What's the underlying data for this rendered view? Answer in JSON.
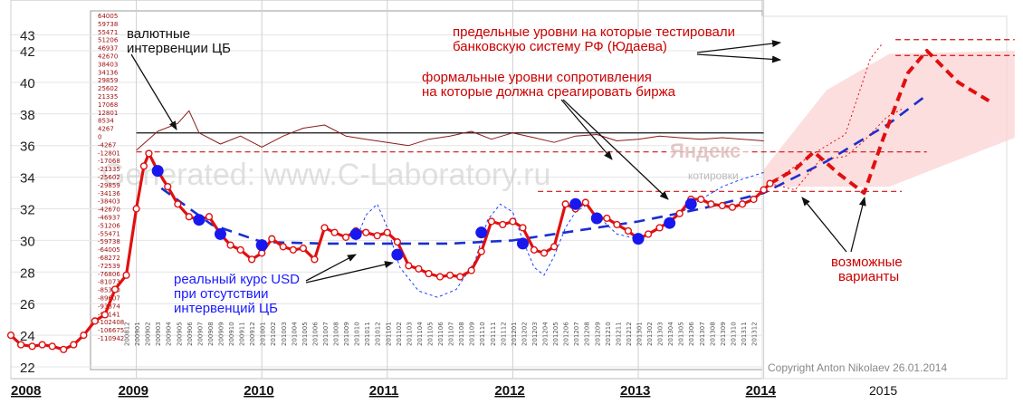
{
  "chart_data": {
    "type": "line",
    "y_ticks": [
      "22",
      "24",
      "26",
      "28",
      "30",
      "32",
      "34",
      "36",
      "38",
      "40",
      "42",
      "43"
    ],
    "x_year_labels": [
      "2008",
      "2009",
      "2010",
      "2011",
      "2012",
      "2013",
      "2014",
      "2015"
    ],
    "ylim": [
      22,
      43
    ],
    "grid": true,
    "series": [
      {
        "name": "",
        "style": "red-solid-with-markers",
        "points": [
          [
            2008.0,
            24.0
          ],
          [
            2008.08,
            23.4
          ],
          [
            2008.17,
            23.3
          ],
          [
            2008.25,
            23.4
          ],
          [
            2008.33,
            23.3
          ],
          [
            2008.42,
            23.1
          ],
          [
            2008.5,
            23.4
          ],
          [
            2008.58,
            24.0
          ],
          [
            2008.67,
            24.9
          ],
          [
            2008.75,
            25.3
          ],
          [
            2008.83,
            26.9
          ],
          [
            2008.92,
            27.8
          ],
          [
            2009.0,
            32.0
          ],
          [
            2009.06,
            34.7
          ],
          [
            2009.1,
            35.5
          ],
          [
            2009.17,
            34.4
          ],
          [
            2009.25,
            33.4
          ],
          [
            2009.33,
            32.3
          ],
          [
            2009.42,
            31.5
          ],
          [
            2009.5,
            31.3
          ],
          [
            2009.58,
            31.5
          ],
          [
            2009.67,
            30.4
          ],
          [
            2009.75,
            29.7
          ],
          [
            2009.83,
            29.4
          ],
          [
            2009.92,
            28.8
          ],
          [
            2010.0,
            29.2
          ],
          [
            2010.08,
            30.1
          ],
          [
            2010.17,
            29.6
          ],
          [
            2010.25,
            29.4
          ],
          [
            2010.33,
            29.5
          ],
          [
            2010.42,
            28.8
          ],
          [
            2010.5,
            30.8
          ],
          [
            2010.58,
            30.5
          ],
          [
            2010.67,
            30.2
          ],
          [
            2010.75,
            30.6
          ],
          [
            2010.83,
            30.5
          ],
          [
            2010.92,
            30.3
          ],
          [
            2011.0,
            30.5
          ],
          [
            2011.08,
            29.9
          ],
          [
            2011.17,
            28.4
          ],
          [
            2011.25,
            28.2
          ],
          [
            2011.33,
            27.9
          ],
          [
            2011.42,
            27.7
          ],
          [
            2011.5,
            27.8
          ],
          [
            2011.58,
            27.7
          ],
          [
            2011.67,
            28.1
          ],
          [
            2011.75,
            29.3
          ],
          [
            2011.83,
            31.2
          ],
          [
            2011.92,
            31.0
          ],
          [
            2012.0,
            31.2
          ],
          [
            2012.08,
            30.8
          ],
          [
            2012.17,
            29.4
          ],
          [
            2012.25,
            29.2
          ],
          [
            2012.33,
            29.6
          ],
          [
            2012.42,
            32.3
          ],
          [
            2012.5,
            32.0
          ],
          [
            2012.58,
            32.4
          ],
          [
            2012.67,
            31.4
          ],
          [
            2012.75,
            31.4
          ],
          [
            2012.83,
            31.0
          ],
          [
            2012.92,
            30.6
          ],
          [
            2013.0,
            30.1
          ],
          [
            2013.08,
            30.4
          ],
          [
            2013.17,
            30.8
          ],
          [
            2013.25,
            31.2
          ],
          [
            2013.33,
            31.7
          ],
          [
            2013.42,
            32.6
          ],
          [
            2013.5,
            32.6
          ],
          [
            2013.58,
            32.3
          ],
          [
            2013.67,
            32.2
          ],
          [
            2013.75,
            32.1
          ],
          [
            2013.83,
            32.3
          ],
          [
            2013.92,
            32.6
          ],
          [
            2014.0,
            33.2
          ],
          [
            2014.05,
            33.6
          ]
        ]
      },
      {
        "name": "",
        "style": "blue-dots",
        "points": [
          [
            2009.17,
            34.4
          ],
          [
            2009.5,
            31.3
          ],
          [
            2009.67,
            30.4
          ],
          [
            2010.0,
            29.7
          ],
          [
            2010.75,
            30.4
          ],
          [
            2011.08,
            29.1
          ],
          [
            2011.75,
            30.5
          ],
          [
            2012.08,
            29.8
          ],
          [
            2012.5,
            32.3
          ],
          [
            2012.67,
            31.4
          ],
          [
            2013.0,
            30.1
          ],
          [
            2013.25,
            31.1
          ],
          [
            2013.42,
            32.3
          ]
        ]
      },
      {
        "name": "",
        "style": "blue-dashed-trend",
        "points": [
          [
            2009.2,
            33.3
          ],
          [
            2009.6,
            31.0
          ],
          [
            2010.0,
            29.9
          ],
          [
            2010.5,
            29.8
          ],
          [
            2011.0,
            29.8
          ],
          [
            2011.5,
            29.8
          ],
          [
            2012.0,
            30.0
          ],
          [
            2012.5,
            30.6
          ],
          [
            2013.0,
            31.2
          ],
          [
            2013.5,
            32.0
          ],
          [
            2014.0,
            33.0
          ],
          [
            2014.5,
            35.0
          ],
          [
            2015.0,
            37.4
          ],
          [
            2015.3,
            39.2
          ]
        ]
      },
      {
        "name": "",
        "style": "blue-dotted-envelope",
        "points": [
          [
            2010.75,
            30.0
          ],
          [
            2010.83,
            31.6
          ],
          [
            2010.92,
            32.3
          ],
          [
            2011.0,
            30.8
          ],
          [
            2011.1,
            28.3
          ],
          [
            2011.25,
            26.8
          ],
          [
            2011.4,
            26.4
          ],
          [
            2011.55,
            26.9
          ],
          [
            2011.7,
            28.7
          ],
          [
            2011.8,
            31.3
          ],
          [
            2011.9,
            32.3
          ],
          [
            2012.0,
            31.8
          ],
          [
            2012.08,
            30.0
          ],
          [
            2012.17,
            28.3
          ],
          [
            2012.25,
            27.8
          ],
          [
            2012.33,
            29.0
          ],
          [
            2012.42,
            30.8
          ],
          [
            2012.5,
            31.8
          ],
          [
            2012.58,
            32.2
          ],
          [
            2012.67,
            31.6
          ],
          [
            2012.83,
            30.4
          ],
          [
            2013.0,
            30.1
          ],
          [
            2013.17,
            30.8
          ],
          [
            2013.33,
            31.7
          ],
          [
            2013.5,
            32.6
          ],
          [
            2013.67,
            33.4
          ],
          [
            2013.8,
            33.8
          ],
          [
            2014.0,
            34.3
          ]
        ]
      },
      {
        "name": "",
        "style": "red-dashed-scenario",
        "points": [
          [
            2014.05,
            33.6
          ],
          [
            2014.25,
            34.5
          ],
          [
            2014.4,
            35.6
          ],
          [
            2014.6,
            34.2
          ],
          [
            2014.8,
            33.0
          ],
          [
            2014.95,
            36.4
          ],
          [
            2015.15,
            40.6
          ],
          [
            2015.3,
            42.0
          ],
          [
            2015.55,
            40.0
          ],
          [
            2015.8,
            38.8
          ]
        ]
      },
      {
        "name": "",
        "style": "red-dotted-scenario-1",
        "points": [
          [
            2014.05,
            33.6
          ],
          [
            2014.4,
            35.5
          ],
          [
            2014.65,
            36.7
          ],
          [
            2014.85,
            41.5
          ],
          [
            2014.95,
            42.5
          ]
        ]
      },
      {
        "name": "",
        "style": "red-dotted-scenario-2",
        "points": [
          [
            2014.05,
            33.6
          ],
          [
            2014.25,
            33.2
          ],
          [
            2014.45,
            35.1
          ],
          [
            2014.65,
            35.3
          ],
          [
            2014.8,
            36.3
          ],
          [
            2014.98,
            37.8
          ],
          [
            2015.1,
            38.3
          ]
        ]
      },
      {
        "name": "",
        "style": "darkred-thin-intervention",
        "points": [
          [
            2009.0,
            35.7
          ],
          [
            2009.17,
            36.9
          ],
          [
            2009.33,
            37.4
          ],
          [
            2009.42,
            38.2
          ],
          [
            2009.5,
            36.8
          ],
          [
            2009.67,
            36.1
          ],
          [
            2009.83,
            36.6
          ],
          [
            2010.0,
            35.9
          ],
          [
            2010.17,
            36.6
          ],
          [
            2010.33,
            37.1
          ],
          [
            2010.5,
            37.3
          ],
          [
            2010.67,
            36.6
          ],
          [
            2010.83,
            36.4
          ],
          [
            2011.0,
            36.2
          ],
          [
            2011.17,
            36.0
          ],
          [
            2011.33,
            36.4
          ],
          [
            2011.5,
            36.6
          ],
          [
            2011.67,
            36.9
          ],
          [
            2011.83,
            36.4
          ],
          [
            2012.0,
            36.8
          ],
          [
            2012.17,
            36.5
          ],
          [
            2012.33,
            36.2
          ],
          [
            2012.5,
            36.6
          ],
          [
            2012.67,
            36.7
          ],
          [
            2012.83,
            36.3
          ],
          [
            2013.0,
            36.4
          ],
          [
            2013.17,
            36.6
          ],
          [
            2013.33,
            36.5
          ],
          [
            2013.5,
            36.4
          ],
          [
            2013.67,
            36.5
          ],
          [
            2013.83,
            36.4
          ],
          [
            2014.0,
            36.3
          ]
        ]
      }
    ],
    "levels": [
      {
        "style": "black-solid",
        "y": 36.8,
        "x_from": 2009.0,
        "x_to": 2014.0
      },
      {
        "style": "red-dashed",
        "y": 35.6,
        "x_from": 2009.0,
        "x_to": 2015.3
      },
      {
        "style": "red-dashed",
        "y": 33.1,
        "x_from": 2012.2,
        "x_to": 2015.1
      },
      {
        "style": "red-dashed",
        "y": 42.7,
        "x_from": 2015.05,
        "x_to": 2016.0
      },
      {
        "style": "red-dashed",
        "y": 41.7,
        "x_from": 2015.05,
        "x_to": 2016.0
      }
    ],
    "forecast_band": {
      "x_from": 2014.0,
      "x_to": 2016.0,
      "lower": [
        [
          2014.0,
          33.4
        ],
        [
          2015.0,
          33.4
        ],
        [
          2016.0,
          36.5
        ]
      ],
      "upper": [
        [
          2014.0,
          34.5
        ],
        [
          2014.5,
          39.5
        ],
        [
          2015.0,
          41.8
        ],
        [
          2016.0,
          42.0
        ]
      ]
    },
    "annotations": {
      "interventions": [
        "валютные",
        "интервенции ЦБ"
      ],
      "limits": [
        "предельные уровни на которые тестировали",
        "банковскую систему РФ (Юдаева)"
      ],
      "resistance": [
        "формальные уровни сопротивления",
        "на которые должна среагировать биржа"
      ],
      "real_rate": [
        "реальный курс USD",
        "при отсутствии",
        "интервенций ЦБ"
      ],
      "variants": [
        "возможные",
        "варианты"
      ],
      "copyright": "Copyright Anton Nikolaev 26.01.2014",
      "watermark": "Generated: www.C-Laboratory.ru",
      "logo_text": "Яндекс",
      "logo_sub": "котировки"
    },
    "vertical_tick_labels": [
      "64005",
      "59738",
      "55471",
      "51206",
      "46937",
      "42670",
      "38403",
      "34136",
      "29859",
      "25602",
      "21335",
      "17068",
      "12801",
      "8534",
      "4267",
      "0",
      "-4267",
      "-12801",
      "-17068",
      "-21335",
      "-25602",
      "-29859",
      "-34136",
      "-38403",
      "-42670",
      "-46937",
      "-51206",
      "-55471",
      "-59738",
      "-64005",
      "-68272",
      "-72539",
      "-76806",
      "-81073",
      "-85340",
      "-89607",
      "-93874",
      "-98141",
      "-102408",
      "-106675",
      "-110942"
    ],
    "month_labels": [
      "200812",
      "200901",
      "200902",
      "200903",
      "200904",
      "200905",
      "200906",
      "200907",
      "200908",
      "200909",
      "200910",
      "200911",
      "200912",
      "201001",
      "201002",
      "201003",
      "201004",
      "201005",
      "201006",
      "201007",
      "201008",
      "201009",
      "201010",
      "201011",
      "201012",
      "201101",
      "201102",
      "201103",
      "201104",
      "201105",
      "201106",
      "201107",
      "201108",
      "201109",
      "201110",
      "201111",
      "201112",
      "201201",
      "201202",
      "201203",
      "201204",
      "201205",
      "201206",
      "201207",
      "201208",
      "201209",
      "201210",
      "201211",
      "201212",
      "201301",
      "201302",
      "201303",
      "201304",
      "201305",
      "201306",
      "201307",
      "201308",
      "201309",
      "201310",
      "201311",
      "201312"
    ]
  }
}
